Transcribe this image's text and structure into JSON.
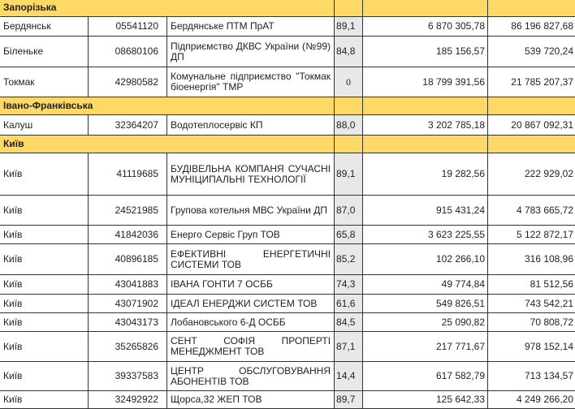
{
  "colors": {
    "section_bg": "#FFD966",
    "score_bg": "#E8E8E8"
  },
  "sections": [
    {
      "region": "Запорізька",
      "rows": [
        {
          "city": "Бердянськ",
          "code": "05541120",
          "name": "Бердянське ПТМ ПрАТ",
          "score": "89,1",
          "value1": "6 870 305,78",
          "value2": "86 196 827,68"
        },
        {
          "city": "Біленьке",
          "code": "08680106",
          "name": "Підприємство ДКВС України (№99) ДП",
          "score": "84,8",
          "value1": "185 156,57",
          "value2": "539 720,24"
        },
        {
          "city": "Токмак",
          "code": "42980582",
          "name": "Комунальне підприємство \"Токмак біоенергія\" ТМР",
          "score": "0",
          "value1": "18 799 391,56",
          "value2": "21 785 207,37"
        }
      ]
    },
    {
      "region": "Івано-Франківська",
      "rows": [
        {
          "city": "Калуш",
          "code": "32364207",
          "name": "Водотеплосервіс КП",
          "score": "88,0",
          "value1": "3 202 785,18",
          "value2": "20 867 092,31"
        }
      ]
    },
    {
      "region": "Київ",
      "rows": [
        {
          "city": "Київ",
          "code": "41119685",
          "name": "БУДІВЕЛЬНА КОМПАНЯ СУЧАСНІ МУНІЦИПАЛЬНІ ТЕХНОЛОГІЇ",
          "score": "89,1",
          "value1": "19 282,56",
          "value2": "222 929,02"
        },
        {
          "city": "Київ",
          "code": "24521985",
          "name": "Групова котельня МВС України ДП",
          "score": "87,0",
          "value1": "915 431,24",
          "value2": "4 783 665,72"
        },
        {
          "city": "Київ",
          "code": "41842036",
          "name": "Енерго Сервіс Груп ТОВ",
          "score": "65,8",
          "value1": "3 623 225,55",
          "value2": "5 122 872,17"
        },
        {
          "city": "Київ",
          "code": "40896185",
          "name": "ЕФЕКТИВНІ ЕНЕРГЕТИЧНІ СИСТЕМИ ТОВ",
          "score": "85,2",
          "value1": "102 266,10",
          "value2": "316 108,96"
        },
        {
          "city": "Київ",
          "code": "43041883",
          "name": "ІВАНА ГОНТИ 7 ОСББ",
          "score": "74,3",
          "value1": "49 774,84",
          "value2": "81 512,56"
        },
        {
          "city": "Київ",
          "code": "43071902",
          "name": "ІДЕАЛ ЕНЕРДЖИ СИСТЕМ ТОВ",
          "score": "61,6",
          "value1": "549 826,51",
          "value2": "743 542,21"
        },
        {
          "city": "Київ",
          "code": "43043173",
          "name": "Лобановського 6-Д ОСББ",
          "score": "84,5",
          "value1": "25 090,82",
          "value2": "70 808,72"
        },
        {
          "city": "Київ",
          "code": "35265826",
          "name": "СЕНТ СОФІЯ ПРОПЕРТІ МЕНЕДЖМЕНТ ТОВ",
          "score": "87,1",
          "value1": "217 771,67",
          "value2": "978 152,14"
        },
        {
          "city": "Київ",
          "code": "39337583",
          "name": "ЦЕНТР ОБСЛУГОВУВАННЯ АБОНЕНТІВ ТОВ",
          "score": "14,4",
          "value1": "617 582,79",
          "value2": "713 134,57"
        },
        {
          "city": "Київ",
          "code": "32492922",
          "name": "Щорса,32 ЖЕП ТОВ",
          "score": "89,7",
          "value1": "125 642,33",
          "value2": "4 249 266,20"
        }
      ]
    }
  ]
}
